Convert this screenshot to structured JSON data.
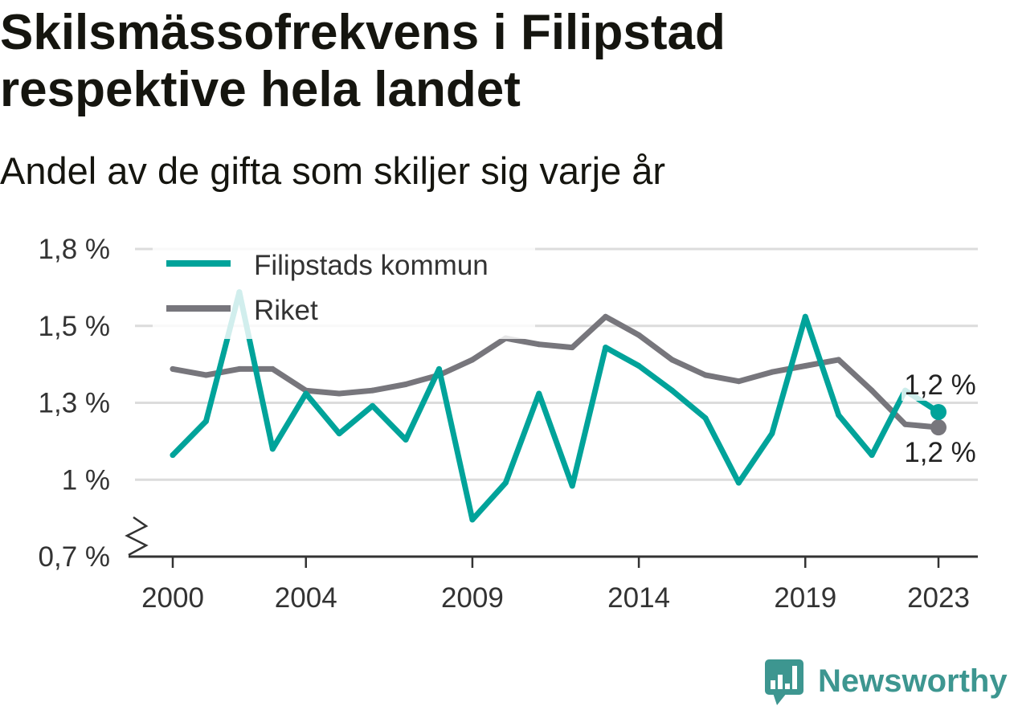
{
  "chart_data": {
    "type": "line",
    "title": "Skilsmässofrekvens i Filipstad respektive hela landet",
    "subtitle": "Andel av de gifta som skiljer sig varje år",
    "x": [
      2000,
      2001,
      2002,
      2003,
      2004,
      2005,
      2006,
      2007,
      2008,
      2009,
      2010,
      2011,
      2012,
      2013,
      2014,
      2015,
      2016,
      2017,
      2018,
      2019,
      2020,
      2021,
      2022,
      2023
    ],
    "xlim": [
      2000,
      2023
    ],
    "ylim": [
      0.75,
      1.75
    ],
    "x_ticks": [
      {
        "value": 2000,
        "label": "2000"
      },
      {
        "value": 2004,
        "label": "2004"
      },
      {
        "value": 2009,
        "label": "2009"
      },
      {
        "value": 2014,
        "label": "2014"
      },
      {
        "value": 2019,
        "label": "2019"
      },
      {
        "value": 2023,
        "label": "2023"
      }
    ],
    "y_ticks": [
      {
        "value": 0.75,
        "label": "0,7 %"
      },
      {
        "value": 1.0,
        "label": "1 %"
      },
      {
        "value": 1.25,
        "label": "1,3 %"
      },
      {
        "value": 1.5,
        "label": "1,5 %"
      },
      {
        "value": 1.75,
        "label": "1,8 %"
      }
    ],
    "y_axis_break": true,
    "grid": true,
    "legend": {
      "placement": "top-left"
    },
    "series": [
      {
        "name": "Filipstads kommun",
        "color": "#00a39a",
        "values": [
          1.08,
          1.19,
          1.61,
          1.1,
          1.28,
          1.15,
          1.24,
          1.13,
          1.36,
          0.87,
          0.99,
          1.28,
          0.98,
          1.43,
          1.37,
          1.29,
          1.2,
          0.99,
          1.15,
          1.53,
          1.21,
          1.08,
          1.29,
          1.22
        ],
        "end_label": "1,2 %",
        "end_label_placement": "above"
      },
      {
        "name": "Riket",
        "color": "#77767c",
        "values": [
          1.36,
          1.34,
          1.36,
          1.36,
          1.29,
          1.28,
          1.29,
          1.31,
          1.34,
          1.39,
          1.46,
          1.44,
          1.43,
          1.53,
          1.47,
          1.39,
          1.34,
          1.32,
          1.35,
          1.37,
          1.39,
          1.29,
          1.18,
          1.17
        ],
        "end_label": "1,2 %",
        "end_label_placement": "below"
      }
    ]
  },
  "brand": {
    "name": "Newsworthy",
    "icon": "newsworthy-chat-chart-icon",
    "color": "#3d9690"
  },
  "colors": {
    "text": "#15150f",
    "axis": "#333333",
    "grid": "#dcdcdc",
    "background": "#ffffff"
  }
}
